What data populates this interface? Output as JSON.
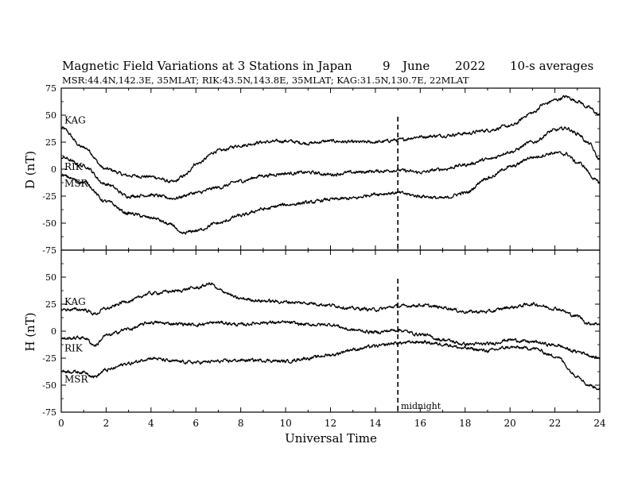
{
  "title": {
    "main": "Magnetic Field Variations at 3 Stations in Japan",
    "day": "9",
    "month": "June",
    "year": "2022",
    "averaging": "10-s averages",
    "stations_line": "MSR:44.4N,142.3E, 35MLAT;  RIK:43.5N,143.8E, 35MLAT;  KAG:31.5N,130.7E, 22MLAT"
  },
  "chart_data": [
    {
      "type": "line",
      "panel": "top",
      "ylabel": "D (nT)",
      "ylim": [
        -75,
        75
      ],
      "yticks": [
        75,
        50,
        25,
        0,
        -25,
        -50,
        -75
      ],
      "xlim": [
        0,
        24
      ],
      "midnight_ut": 15,
      "series": [
        {
          "name": "KAG",
          "x": [
            0,
            1,
            2,
            3,
            4,
            5,
            5.5,
            6,
            7,
            8,
            9,
            10,
            11,
            12,
            13,
            14,
            15,
            16,
            17,
            18,
            19,
            20,
            21,
            21.5,
            22,
            22.5,
            23,
            23.5,
            24
          ],
          "values": [
            38,
            20,
            0,
            -6,
            -7,
            -12,
            -6,
            5,
            17,
            22,
            25,
            26,
            24,
            26,
            25,
            25,
            27,
            30,
            31,
            33,
            36,
            40,
            52,
            60,
            64,
            67,
            63,
            57,
            50
          ]
        },
        {
          "name": "RIK",
          "x": [
            0,
            1,
            2,
            3,
            4,
            5,
            6,
            7,
            8,
            9,
            10,
            11,
            12,
            13,
            14,
            15,
            16,
            17,
            18,
            19,
            20,
            21,
            22,
            22.5,
            23,
            23.5,
            24
          ],
          "values": [
            11,
            3,
            -14,
            -25,
            -24,
            -27,
            -22,
            -17,
            -11,
            -6,
            -4,
            -3,
            -5,
            -3,
            -2,
            -1,
            -3,
            0,
            4,
            9,
            16,
            25,
            36,
            38,
            33,
            24,
            9
          ]
        },
        {
          "name": "MSR",
          "x": [
            0,
            1,
            2,
            3,
            4,
            5,
            5.3,
            6,
            7,
            8,
            9,
            10,
            11,
            12,
            13,
            14,
            15,
            16,
            17,
            18,
            19,
            20,
            21,
            22,
            22.5,
            23,
            24
          ],
          "values": [
            -6,
            -12,
            -30,
            -41,
            -45,
            -52,
            -60,
            -57,
            -50,
            -43,
            -37,
            -33,
            -31,
            -28,
            -27,
            -23,
            -22,
            -25,
            -27,
            -22,
            -8,
            2,
            11,
            15,
            14,
            6,
            -12
          ]
        }
      ]
    },
    {
      "type": "line",
      "panel": "bottom",
      "ylabel": "H (nT)",
      "xlabel": "Universal Time",
      "ylim": [
        -75,
        75
      ],
      "yticks": [
        50,
        25,
        0,
        -25,
        -50,
        -75
      ],
      "xlim": [
        0,
        24
      ],
      "xticks": [
        0,
        2,
        4,
        6,
        8,
        10,
        12,
        14,
        16,
        18,
        20,
        22,
        24
      ],
      "midnight_ut": 15,
      "series": [
        {
          "name": "KAG",
          "x": [
            0,
            1,
            1.5,
            2,
            3,
            4,
            5,
            6,
            6.7,
            7,
            8,
            9,
            10,
            11,
            12,
            13,
            14,
            15,
            16,
            17,
            18,
            19,
            20,
            21,
            22,
            23,
            23.5,
            24
          ],
          "values": [
            20,
            20,
            16,
            21,
            28,
            35,
            37,
            40,
            44,
            38,
            30,
            28,
            27,
            26,
            24,
            21,
            20,
            23,
            24,
            22,
            18,
            18,
            22,
            25,
            21,
            14,
            7,
            7
          ]
        },
        {
          "name": "RIK",
          "x": [
            0,
            1,
            1.5,
            2,
            3,
            4,
            5,
            6,
            7,
            8,
            9,
            10,
            11,
            12,
            13,
            14,
            15,
            16,
            17,
            18,
            19,
            20,
            21,
            22,
            23,
            24
          ],
          "values": [
            -7,
            -6,
            -13,
            -4,
            2,
            8,
            7,
            6,
            8,
            6,
            8,
            8,
            6,
            6,
            1,
            -1,
            1,
            -3,
            -8,
            -12,
            -12,
            -8,
            -10,
            -13,
            -19,
            -25
          ]
        },
        {
          "name": "MSR",
          "x": [
            0,
            1,
            1.5,
            2,
            3,
            4,
            5,
            6,
            7,
            8,
            9,
            10,
            11,
            12,
            13,
            14,
            15,
            16,
            17,
            18,
            19,
            20,
            21,
            22,
            23,
            23.5,
            24
          ],
          "values": [
            -37,
            -38,
            -42,
            -36,
            -30,
            -25,
            -28,
            -29,
            -28,
            -27,
            -27,
            -28,
            -25,
            -22,
            -17,
            -14,
            -11,
            -10,
            -12,
            -16,
            -18,
            -15,
            -16,
            -23,
            -41,
            -50,
            -53
          ]
        }
      ]
    }
  ],
  "midnight_label": "midnight"
}
